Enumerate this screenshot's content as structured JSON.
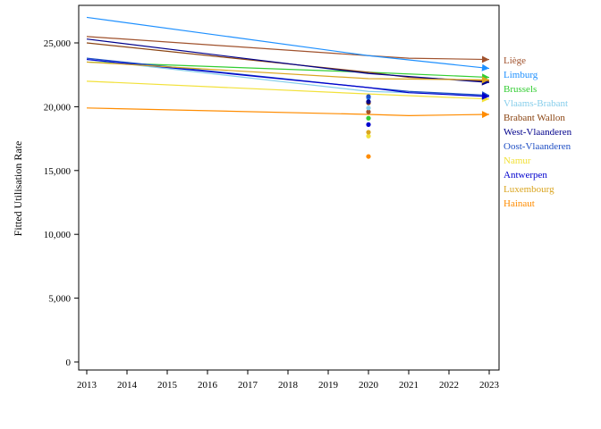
{
  "chart_data": {
    "type": "line",
    "ylabel": "Fitted Utilisation Rate",
    "xlabel": "",
    "x": [
      2013,
      2014,
      2015,
      2016,
      2017,
      2018,
      2019,
      2020,
      2021,
      2022,
      2023
    ],
    "x_tick_labels": [
      "2013",
      "2014",
      "2015",
      "2016",
      "2017",
      "2018",
      "2019",
      "2020",
      "2021",
      "2022",
      "2023"
    ],
    "xlim": [
      2013,
      2023
    ],
    "ylim": [
      -800,
      28200
    ],
    "y_ticks": [
      0,
      5000,
      10000,
      15000,
      20000,
      25000
    ],
    "y_tick_labels": [
      "0",
      "5,000",
      "10,000",
      "15,000",
      "20,000",
      "25,000"
    ],
    "grid": false,
    "legend_position": "right",
    "series": [
      {
        "name": "Liège",
        "color": "#a0522d",
        "x": [
          2013,
          2020,
          2021,
          2023
        ],
        "values": [
          25500,
          24000,
          23800,
          23700
        ],
        "observed": {
          "x": 2020,
          "y": 19600
        }
      },
      {
        "name": "Limburg",
        "color": "#1e90ff",
        "x": [
          2013,
          2020,
          2023
        ],
        "values": [
          27000,
          24000,
          23000
        ],
        "observed": {
          "x": 2020,
          "y": 20700
        }
      },
      {
        "name": "Brussels",
        "color": "#32cd32",
        "x": [
          2013,
          2020,
          2023
        ],
        "values": [
          23500,
          22700,
          22300
        ],
        "observed": {
          "x": 2020,
          "y": 19100
        }
      },
      {
        "name": "Vlaams-Brabant",
        "color": "#87ceeb",
        "x": [
          2013,
          2020,
          2023
        ],
        "values": [
          23700,
          21200,
          20900
        ],
        "observed": {
          "x": 2020,
          "y": 19900
        }
      },
      {
        "name": "Brabant Wallon",
        "color": "#8b4513",
        "x": [
          2013,
          2020,
          2021,
          2023
        ],
        "values": [
          25000,
          22700,
          22300,
          22000
        ],
        "observed": {
          "x": 2020,
          "y": 20300
        }
      },
      {
        "name": "West-Vlaanderen",
        "color": "#00008b",
        "x": [
          2013,
          2020,
          2023
        ],
        "values": [
          25300,
          22600,
          21900
        ],
        "observed": {
          "x": 2020,
          "y": 20400
        }
      },
      {
        "name": "Oost-Vlaanderen",
        "color": "#1f4fc4",
        "x": [
          2013,
          2020,
          2021,
          2023
        ],
        "values": [
          23800,
          21500,
          21200,
          20900
        ],
        "observed": {
          "x": 2020,
          "y": 20800
        }
      },
      {
        "name": "Namur",
        "color": "#f2e13a",
        "x": [
          2013,
          2020,
          2023
        ],
        "values": [
          22000,
          21000,
          20600
        ],
        "observed": {
          "x": 2020,
          "y": 17700
        }
      },
      {
        "name": "Antwerpen",
        "color": "#0000cd",
        "x": [
          2013,
          2020,
          2021,
          2023
        ],
        "values": [
          23700,
          21500,
          21100,
          20800
        ],
        "observed": {
          "x": 2020,
          "y": 18600
        }
      },
      {
        "name": "Luxembourg",
        "color": "#daa520",
        "x": [
          2013,
          2020,
          2023
        ],
        "values": [
          23500,
          22200,
          22100
        ],
        "observed": {
          "x": 2020,
          "y": 18000
        }
      },
      {
        "name": "Hainaut",
        "color": "#ff8c00",
        "x": [
          2013,
          2020,
          2021,
          2023
        ],
        "values": [
          19900,
          19400,
          19300,
          19400
        ],
        "observed": {
          "x": 2020,
          "y": 16100
        }
      }
    ]
  }
}
